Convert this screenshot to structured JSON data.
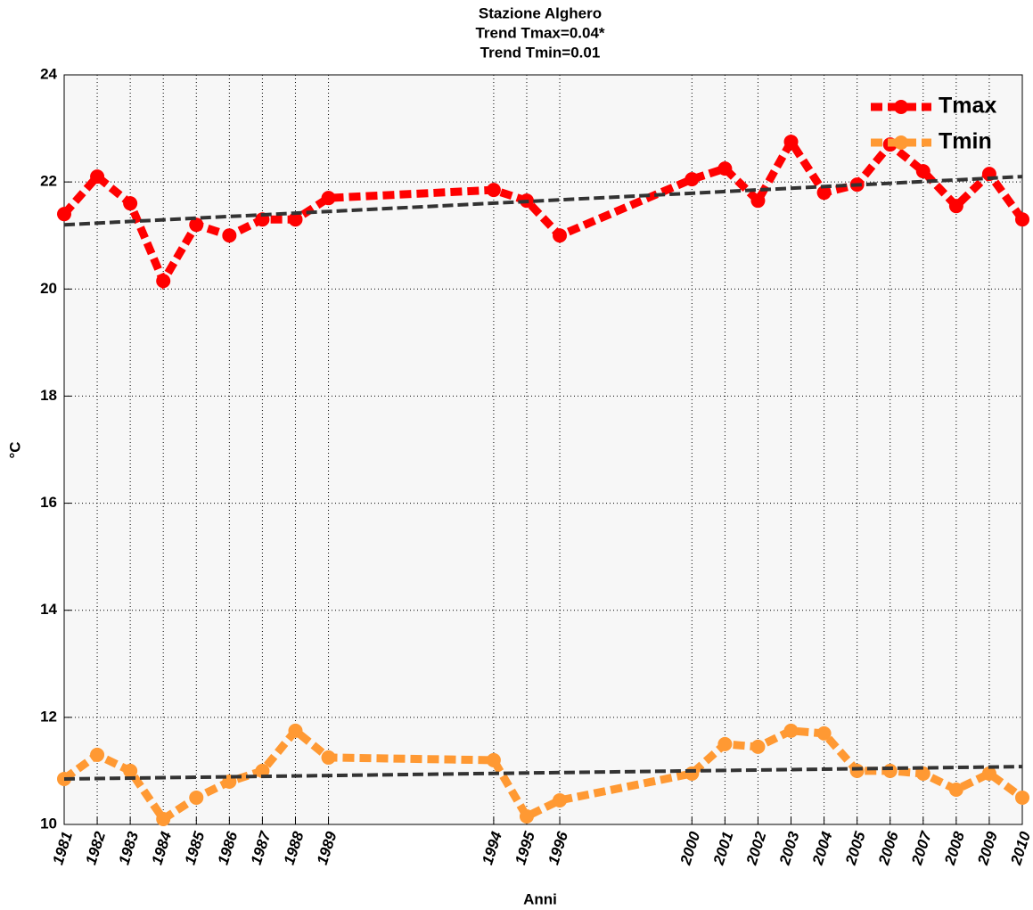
{
  "chart_data": {
    "type": "line",
    "title": [
      "Stazione Alghero",
      "Trend Tmax=0.04*",
      "Trend Tmin=0.01"
    ],
    "x_label": "Anni",
    "y_label": "°C",
    "x": [
      1981,
      1982,
      1983,
      1984,
      1985,
      1986,
      1987,
      1988,
      1989,
      1994,
      1995,
      1996,
      2000,
      2001,
      2002,
      2003,
      2004,
      2005,
      2006,
      2007,
      2008,
      2009,
      2010
    ],
    "series": [
      {
        "name": "Tmax",
        "color": "#ff0000",
        "values": [
          21.4,
          22.1,
          21.6,
          20.15,
          21.2,
          21.0,
          21.3,
          21.3,
          21.7,
          21.85,
          21.65,
          21.0,
          22.05,
          22.25,
          21.65,
          22.75,
          21.8,
          21.95,
          22.7,
          22.2,
          21.55,
          22.15,
          21.3
        ]
      },
      {
        "name": "Tmin",
        "color": "#ff9933",
        "values": [
          10.85,
          11.3,
          11.0,
          10.1,
          10.5,
          10.8,
          11.0,
          11.75,
          11.25,
          11.2,
          10.15,
          10.45,
          10.95,
          11.5,
          11.45,
          11.75,
          11.7,
          11.0,
          11.0,
          10.95,
          10.65,
          10.95,
          10.5
        ]
      }
    ],
    "trend_lines": [
      {
        "color": "#333333",
        "x": [
          1981,
          2010
        ],
        "values": [
          21.2,
          22.1
        ]
      },
      {
        "color": "#333333",
        "x": [
          1981,
          2010
        ],
        "values": [
          10.85,
          11.08
        ]
      }
    ],
    "xlim": [
      1981,
      2010
    ],
    "xticks": [
      1981,
      1982,
      1983,
      1984,
      1985,
      1986,
      1987,
      1988,
      1989,
      1994,
      1995,
      1996,
      2000,
      2001,
      2002,
      2003,
      2004,
      2005,
      2006,
      2007,
      2008,
      2009,
      2010
    ],
    "ylim": [
      10,
      24
    ],
    "yticks": [
      10,
      12,
      14,
      16,
      18,
      20,
      22,
      24
    ],
    "grid": true,
    "legend": "upper right"
  }
}
